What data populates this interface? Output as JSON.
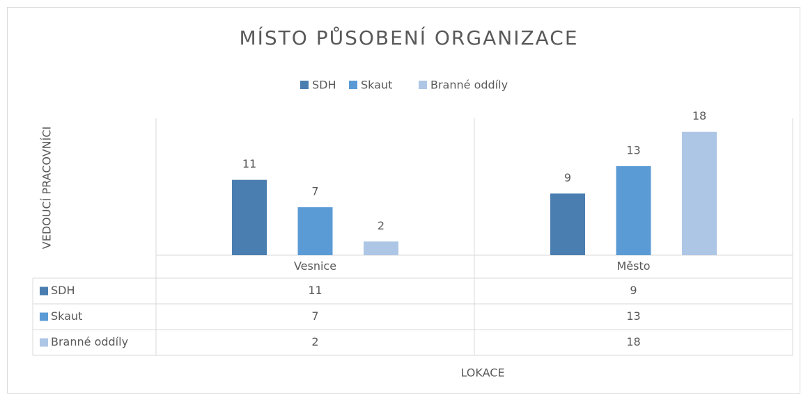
{
  "chart_data": {
    "type": "bar",
    "title": "MÍSTO PŮSOBENÍ ORGANIZACE",
    "y_label": "VEDOUCÍ PRACOVNÍCI",
    "x_label": "LOKACE",
    "categories": [
      "Vesnice",
      "Město"
    ],
    "series": [
      {
        "name": "SDH",
        "color": "#4a7eb0",
        "values": [
          11,
          9
        ]
      },
      {
        "name": "Skaut",
        "color": "#5b9bd5",
        "values": [
          7,
          13
        ]
      },
      {
        "name": "Branné oddíly",
        "color": "#adc6e5",
        "values": [
          2,
          18
        ]
      }
    ],
    "ylim": [
      0,
      20
    ],
    "legend": "top",
    "data_table": true
  }
}
